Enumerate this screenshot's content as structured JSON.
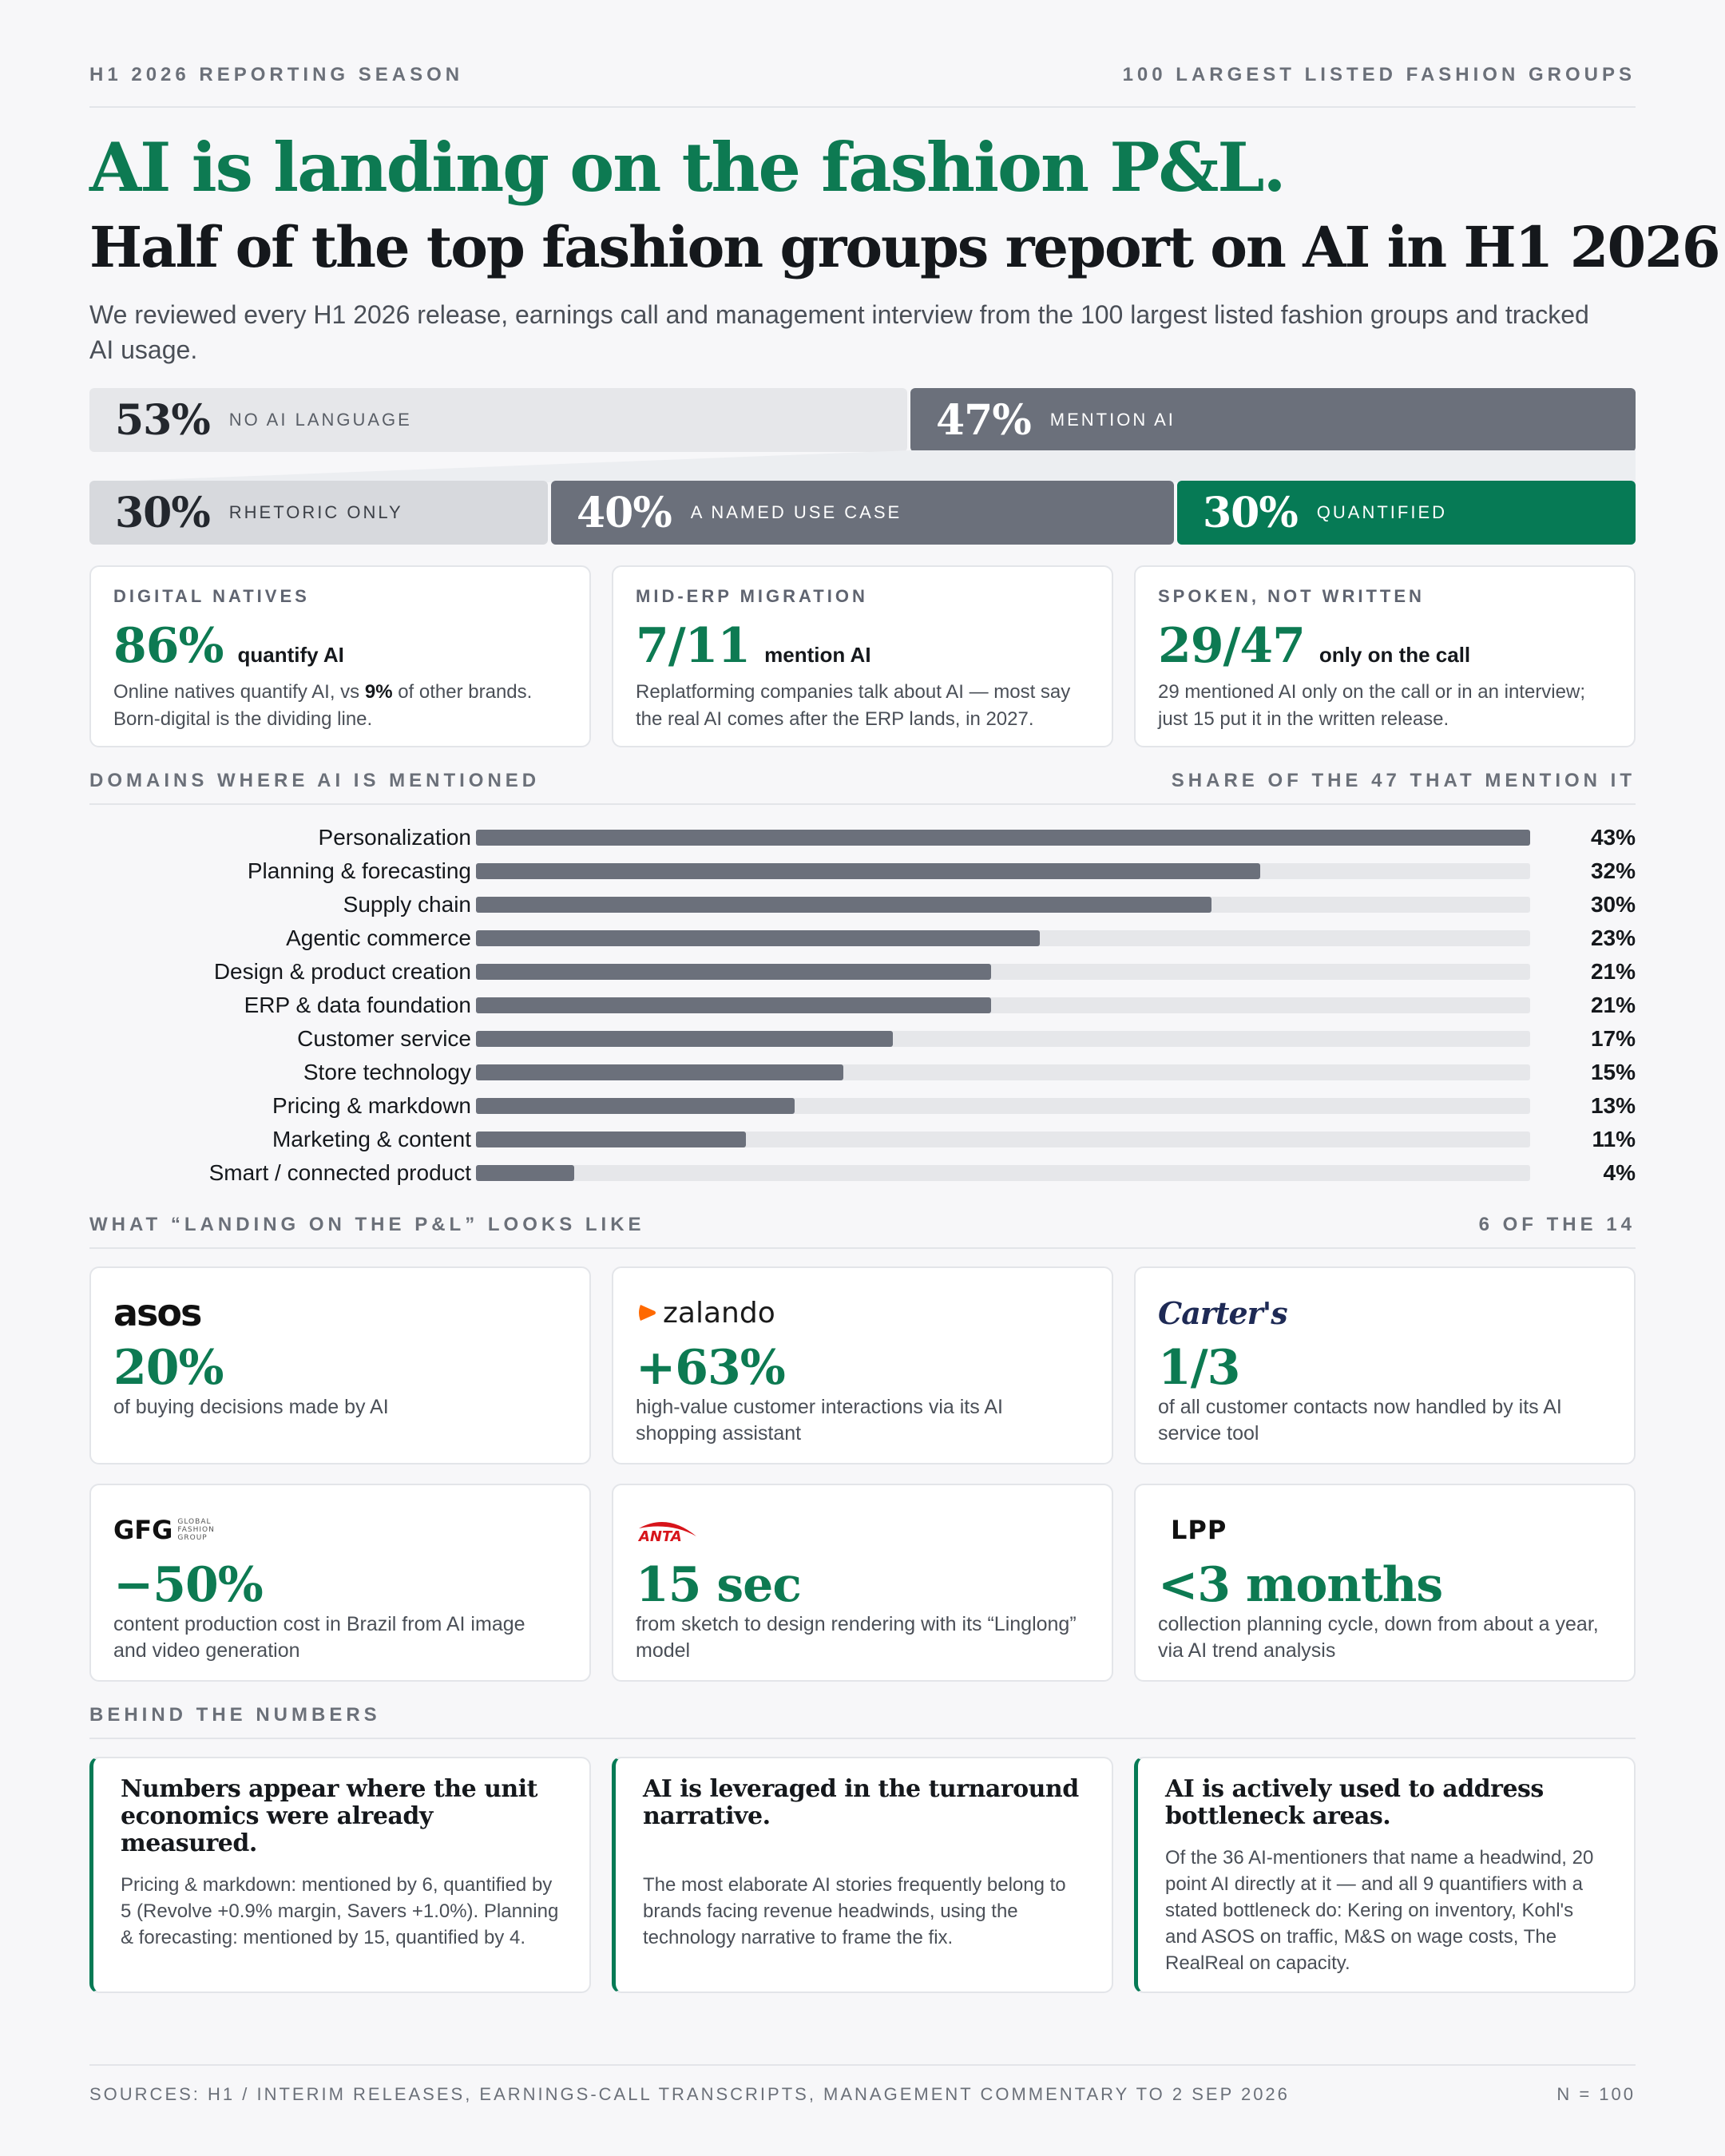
{
  "header": {
    "left": "H1 2026 REPORTING SEASON",
    "right": "100 LARGEST LISTED FASHION GROUPS",
    "title": "AI is landing on the fashion P&L.",
    "subtitle": "Half of the top fashion groups report on AI in H1 2026",
    "intro": "We reviewed every H1 2026 release, earnings call and management interview from the 100 largest listed fashion groups and tracked AI usage."
  },
  "shares": {
    "top": [
      {
        "pct": "53%",
        "label": "NO AI LANGUAGE",
        "value": 53
      },
      {
        "pct": "47%",
        "label": "MENTION AI",
        "value": 47
      }
    ],
    "bottom": [
      {
        "pct": "30%",
        "label": "RHETORIC ONLY",
        "value": 30
      },
      {
        "pct": "40%",
        "label": "A NAMED USE CASE",
        "value": 40
      },
      {
        "pct": "30%",
        "label": "QUANTIFIED",
        "value": 30
      }
    ]
  },
  "stats": [
    {
      "kicker": "DIGITAL NATIVES",
      "big": "86%",
      "sub": "quantify AI",
      "desc_a": "Online natives quantify AI, vs ",
      "desc_bold": "9%",
      "desc_b": " of other brands. Born-digital is the dividing line."
    },
    {
      "kicker": "MID-ERP MIGRATION",
      "big": "7/11",
      "sub": "mention AI",
      "desc_a": "Replatforming companies talk about AI — most say the real AI comes after the ERP lands, in 2027.",
      "desc_bold": "",
      "desc_b": ""
    },
    {
      "kicker": "SPOKEN, NOT WRITTEN",
      "big": "29/47",
      "sub": "only on the call",
      "desc_a": "29 mentioned AI only on the call or in an interview; just 15 put it in the written release.",
      "desc_bold": "",
      "desc_b": ""
    }
  ],
  "domains": {
    "left": "DOMAINS WHERE AI IS MENTIONED",
    "right": "SHARE OF THE 47 THAT MENTION IT"
  },
  "chart_data": {
    "type": "bar",
    "orientation": "horizontal",
    "title": "DOMAINS WHERE AI IS MENTIONED",
    "categories": [
      "Personalization",
      "Planning & forecasting",
      "Supply chain",
      "Agentic commerce",
      "Design & product creation",
      "ERP & data foundation",
      "Customer service",
      "Store technology",
      "Pricing & markdown",
      "Marketing & content",
      "Smart / connected product"
    ],
    "values": [
      43,
      32,
      30,
      23,
      21,
      21,
      17,
      15,
      13,
      11,
      4
    ],
    "value_labels": [
      "43%",
      "32%",
      "30%",
      "23%",
      "21%",
      "21%",
      "17%",
      "15%",
      "13%",
      "11%",
      "4%"
    ],
    "xlim": [
      0,
      43
    ],
    "unit": "%",
    "grid": false,
    "colors": {
      "bar": "#6b707b",
      "track": "#e6e7ea"
    }
  },
  "landing": {
    "left": "WHAT “LANDING ON THE P&L” LOOKS LIKE",
    "right": "6 OF THE 14",
    "cases": [
      {
        "logo": "asos",
        "big": "20%",
        "desc": "of buying decisions made by AI"
      },
      {
        "logo": "zalando",
        "big": "+63%",
        "desc": "high-value customer interactions via its AI shopping assistant"
      },
      {
        "logo": "Carter's",
        "big": "1/3",
        "desc": "of all customer contacts now handled by its AI service tool"
      },
      {
        "logo": "GFG",
        "logo_small": "GLOBAL FASHION GROUP",
        "big": "−50%",
        "desc": "content production cost in Brazil from AI image and video generation"
      },
      {
        "logo": "ANTA",
        "big": "15 sec",
        "desc": "from sketch to design rendering with its “Linglong” model"
      },
      {
        "logo": "LPP",
        "big": "<3 months",
        "desc": "collection planning cycle, down from about a year, via AI trend analysis"
      }
    ]
  },
  "behind": {
    "heading": "BEHIND THE NUMBERS",
    "cards": [
      {
        "title": "Numbers appear where the unit economics were already measured.",
        "body": "Pricing & markdown: mentioned by 6, quantified by 5 (Revolve +0.9% margin, Savers +1.0%). Planning & forecasting: mentioned by 15, quantified by 4."
      },
      {
        "title": "AI is leveraged in the turnaround narrative.",
        "body": "The most elaborate AI stories frequently belong to brands facing revenue headwinds, using the technology narrative to frame the fix."
      },
      {
        "title": "AI is actively used to address bottleneck areas.",
        "body": "Of the 36 AI-mentioners that name a headwind, 20 point AI directly at it — and all 9 quantifiers with a stated bottleneck do: Kering on inventory, Kohl's and ASOS on traffic, M&S on wage costs, The RealReal on capacity."
      }
    ]
  },
  "footer": {
    "sources": "SOURCES: H1 / INTERIM RELEASES, EARNINGS-CALL TRANSCRIPTS, MANAGEMENT COMMENTARY TO 2 SEP 2026",
    "n": "N = 100"
  },
  "colors": {
    "accent": "#0d7a52",
    "bar": "#6b707b",
    "track": "#e6e7ea"
  }
}
